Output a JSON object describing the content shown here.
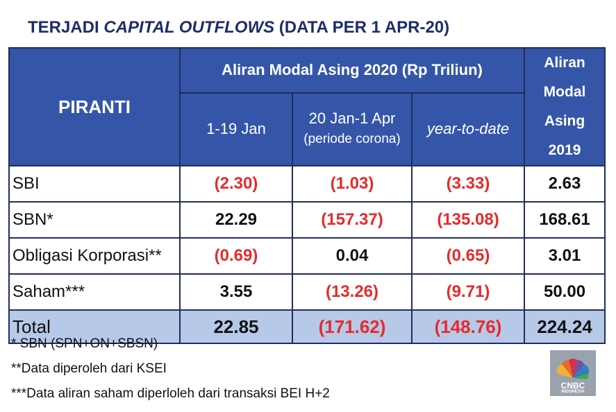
{
  "title": {
    "prefix": "TERJADI ",
    "emph": "CAPITAL OUTFLOWS",
    "suffix": " (DATA PER 1 APR-20)"
  },
  "table": {
    "col_piranti": "PIRANTI",
    "group_header": "Aliran Modal Asing 2020 (Rp Triliun)",
    "sub1": "1-19 Jan",
    "sub2_line1": "20 Jan-1 Apr",
    "sub2_line2": "(periode corona)",
    "sub3": "year-to-date",
    "col2019_line1": "Aliran",
    "col2019_line2": "Modal Asing",
    "col2019_line3": "2019",
    "rows": [
      {
        "label": "SBI",
        "jan": "(2.30)",
        "corona": "(1.03)",
        "ytd": "(3.33)",
        "y2019": "2.63"
      },
      {
        "label": "SBN*",
        "jan": "22.29",
        "corona": "(157.37)",
        "ytd": "(135.08)",
        "y2019": "168.61"
      },
      {
        "label": "Obligasi Korporasi**",
        "jan": "(0.69)",
        "corona": "0.04",
        "ytd": "(0.65)",
        "y2019": "3.01"
      },
      {
        "label": "Saham***",
        "jan": "3.55",
        "corona": "(13.26)",
        "ytd": "(9.71)",
        "y2019": "50.00"
      }
    ],
    "total": {
      "label": "Total",
      "jan": "22.85",
      "corona": "(171.62)",
      "ytd": "(148.76)",
      "y2019": "224.24"
    }
  },
  "notes": [
    "* SBN (SPN+ON+SBSN)",
    "**Data diperoleh dari KSEI",
    "***Data aliran saham diperloleh dari transaksi BEI H+2"
  ],
  "logo": {
    "line1": "CNBC",
    "line2": "INDONESIA"
  },
  "colors": {
    "header": "#3556a8",
    "total": "#b7c9e8",
    "negative": "#e52b2b",
    "title": "#1f2c6b"
  }
}
